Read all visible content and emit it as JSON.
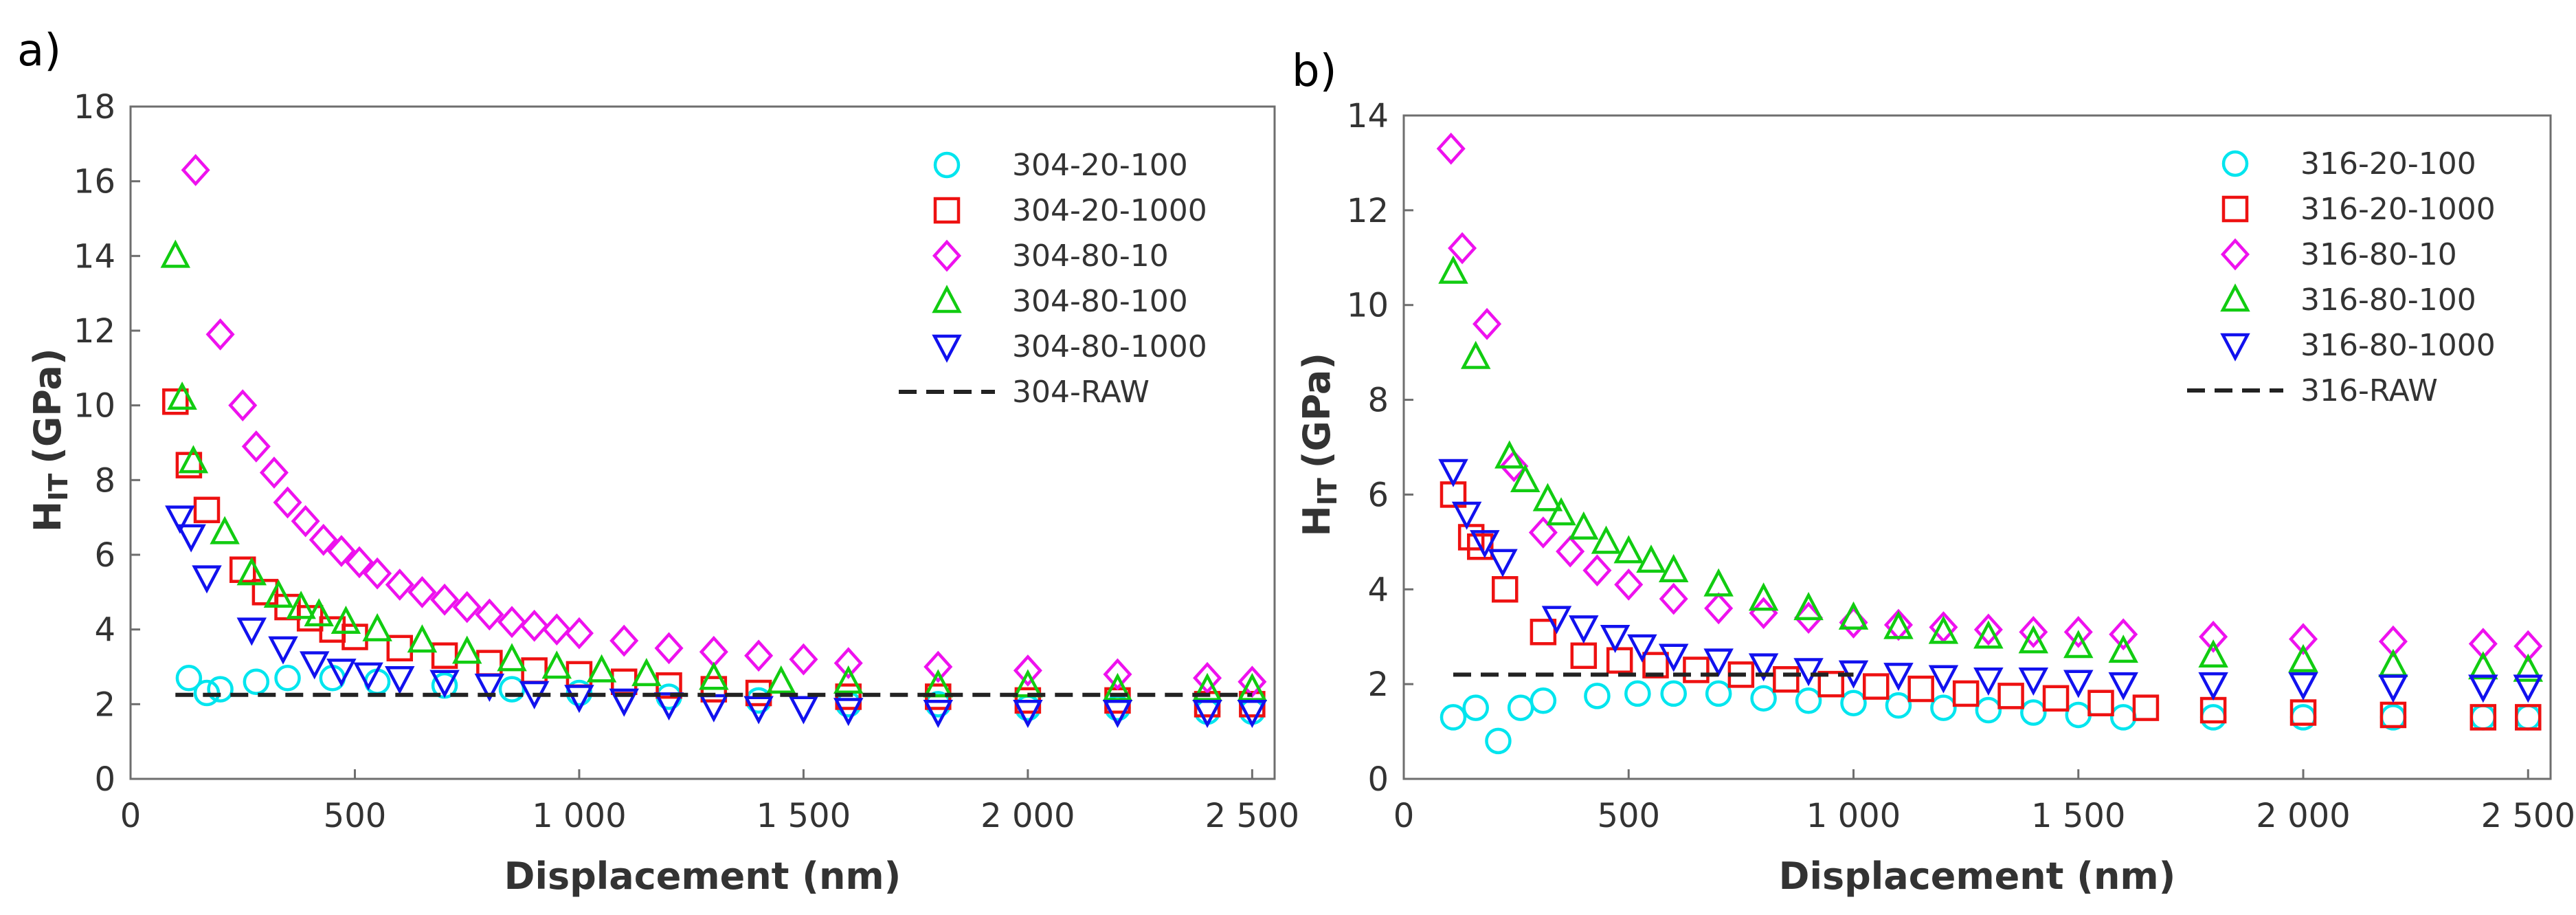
{
  "chart_data": [
    {
      "panel_label": "a)",
      "type": "scatter",
      "xlabel": "Displacement (nm)",
      "ylabel_main": "H",
      "ylabel_sub": "IT",
      "ylabel_unit": "(GPa)",
      "xlim": [
        0,
        2550
      ],
      "ylim": [
        0,
        18
      ],
      "xticks": [
        0,
        500,
        1000,
        1500,
        2000,
        2500
      ],
      "xtick_labels": [
        "0",
        "500",
        "1 000",
        "1 500",
        "2 000",
        "2 500"
      ],
      "yticks": [
        0,
        2,
        4,
        6,
        8,
        10,
        12,
        14,
        16,
        18
      ],
      "ytick_labels": [
        "0",
        "2",
        "4",
        "6",
        "8",
        "10",
        "12",
        "14",
        "16",
        "18"
      ],
      "legend_position": "top-right",
      "series": [
        {
          "name": "304-20-100",
          "marker": "circle",
          "color": "#00e5ee",
          "x": [
            130,
            170,
            200,
            280,
            350,
            450,
            550,
            700,
            850,
            1000,
            1200,
            1400,
            1600,
            1800,
            2000,
            2200,
            2400,
            2500
          ],
          "y": [
            2.7,
            2.3,
            2.4,
            2.6,
            2.7,
            2.7,
            2.6,
            2.5,
            2.4,
            2.3,
            2.2,
            2.1,
            2.0,
            2.0,
            1.9,
            1.9,
            1.8,
            1.8
          ]
        },
        {
          "name": "304-20-1000",
          "marker": "square",
          "color": "#ee1111",
          "x": [
            100,
            130,
            170,
            250,
            300,
            350,
            400,
            450,
            500,
            600,
            700,
            800,
            900,
            1000,
            1100,
            1200,
            1300,
            1400,
            1600,
            1800,
            2000,
            2200,
            2400,
            2500
          ],
          "y": [
            10.1,
            8.4,
            7.2,
            5.6,
            5.0,
            4.6,
            4.3,
            4.0,
            3.8,
            3.5,
            3.3,
            3.1,
            2.9,
            2.8,
            2.6,
            2.5,
            2.4,
            2.3,
            2.2,
            2.2,
            2.1,
            2.1,
            2.0,
            2.0
          ]
        },
        {
          "name": "304-80-10",
          "marker": "diamond",
          "color": "#ee11ee",
          "x": [
            145,
            200,
            250,
            280,
            320,
            350,
            390,
            430,
            470,
            510,
            550,
            600,
            650,
            700,
            750,
            800,
            850,
            900,
            950,
            1000,
            1100,
            1200,
            1300,
            1400,
            1500,
            1600,
            1800,
            2000,
            2200,
            2400,
            2500
          ],
          "y": [
            16.3,
            11.9,
            10.0,
            8.9,
            8.2,
            7.4,
            6.9,
            6.4,
            6.1,
            5.8,
            5.5,
            5.2,
            5.0,
            4.8,
            4.6,
            4.4,
            4.2,
            4.1,
            4.0,
            3.9,
            3.7,
            3.5,
            3.4,
            3.3,
            3.2,
            3.1,
            3.0,
            2.9,
            2.8,
            2.7,
            2.6
          ]
        },
        {
          "name": "304-80-100",
          "marker": "triangle-up",
          "color": "#11cc11",
          "x": [
            100,
            115,
            140,
            210,
            270,
            330,
            380,
            420,
            480,
            550,
            650,
            750,
            850,
            950,
            1050,
            1150,
            1300,
            1450,
            1600,
            1800,
            2000,
            2200,
            2400,
            2500
          ],
          "y": [
            14.0,
            10.2,
            8.5,
            6.6,
            5.5,
            4.9,
            4.6,
            4.4,
            4.2,
            4.0,
            3.7,
            3.4,
            3.2,
            3.0,
            2.9,
            2.8,
            2.7,
            2.6,
            2.6,
            2.5,
            2.5,
            2.4,
            2.4,
            2.4
          ]
        },
        {
          "name": "304-80-1000",
          "marker": "triangle-down",
          "color": "#1111ee",
          "x": [
            110,
            135,
            170,
            270,
            340,
            410,
            470,
            530,
            600,
            700,
            800,
            900,
            1000,
            1100,
            1200,
            1300,
            1400,
            1500,
            1600,
            1800,
            2000,
            2200,
            2400,
            2500
          ],
          "y": [
            7.0,
            6.5,
            5.4,
            4.0,
            3.5,
            3.1,
            2.9,
            2.8,
            2.7,
            2.6,
            2.5,
            2.3,
            2.2,
            2.1,
            2.0,
            1.95,
            1.9,
            1.9,
            1.85,
            1.8,
            1.8,
            1.8,
            1.8,
            1.8
          ]
        },
        {
          "name": "304-RAW",
          "marker": "dash",
          "color": "#222222",
          "x": [
            100,
            2500
          ],
          "y": [
            2.25,
            2.25
          ]
        }
      ]
    },
    {
      "panel_label": "b)",
      "type": "scatter",
      "xlabel": "Displacement (nm)",
      "ylabel_main": "H",
      "ylabel_sub": "IT",
      "ylabel_unit": "(GPa)",
      "xlim": [
        0,
        2550
      ],
      "ylim": [
        0,
        14
      ],
      "xticks": [
        0,
        500,
        1000,
        1500,
        2000,
        2500
      ],
      "xtick_labels": [
        "0",
        "500",
        "1 000",
        "1 500",
        "2 000",
        "2 500"
      ],
      "yticks": [
        0,
        2,
        4,
        6,
        8,
        10,
        12,
        14
      ],
      "ytick_labels": [
        "0",
        "2",
        "4",
        "6",
        "8",
        "10",
        "12",
        "14"
      ],
      "legend_position": "top-right",
      "series": [
        {
          "name": "316-20-100",
          "marker": "circle",
          "color": "#00e5ee",
          "x": [
            110,
            160,
            210,
            260,
            310,
            430,
            520,
            600,
            700,
            800,
            900,
            1000,
            1100,
            1200,
            1300,
            1400,
            1500,
            1600,
            1800,
            2000,
            2200,
            2400,
            2500
          ],
          "y": [
            1.3,
            1.5,
            0.8,
            1.5,
            1.65,
            1.75,
            1.8,
            1.8,
            1.8,
            1.7,
            1.65,
            1.6,
            1.55,
            1.5,
            1.45,
            1.4,
            1.35,
            1.3,
            1.3,
            1.3,
            1.3,
            1.3,
            1.3
          ]
        },
        {
          "name": "316-20-1000",
          "marker": "square",
          "color": "#ee1111",
          "x": [
            110,
            150,
            170,
            225,
            310,
            400,
            480,
            560,
            650,
            750,
            850,
            950,
            1050,
            1150,
            1250,
            1350,
            1450,
            1550,
            1650,
            1800,
            2000,
            2200,
            2400,
            2500
          ],
          "y": [
            6.0,
            5.1,
            4.9,
            4.0,
            3.1,
            2.6,
            2.5,
            2.4,
            2.3,
            2.2,
            2.1,
            2.0,
            1.95,
            1.9,
            1.8,
            1.75,
            1.7,
            1.6,
            1.5,
            1.45,
            1.4,
            1.35,
            1.3,
            1.3
          ]
        },
        {
          "name": "316-80-10",
          "marker": "diamond",
          "color": "#ee11ee",
          "x": [
            105,
            130,
            185,
            245,
            310,
            370,
            430,
            500,
            600,
            700,
            800,
            900,
            1000,
            1100,
            1200,
            1300,
            1400,
            1500,
            1600,
            1800,
            2000,
            2200,
            2400,
            2500
          ],
          "y": [
            13.3,
            11.2,
            9.6,
            6.6,
            5.2,
            4.8,
            4.4,
            4.1,
            3.8,
            3.6,
            3.5,
            3.4,
            3.3,
            3.25,
            3.2,
            3.15,
            3.1,
            3.1,
            3.05,
            3.0,
            2.95,
            2.9,
            2.85,
            2.8
          ]
        },
        {
          "name": "316-80-100",
          "marker": "triangle-up",
          "color": "#11cc11",
          "x": [
            110,
            160,
            235,
            270,
            320,
            350,
            400,
            450,
            500,
            550,
            600,
            700,
            800,
            900,
            1000,
            1100,
            1200,
            1300,
            1400,
            1500,
            1600,
            1800,
            2000,
            2200,
            2400,
            2500
          ],
          "y": [
            10.7,
            8.9,
            6.8,
            6.3,
            5.9,
            5.6,
            5.3,
            5.0,
            4.8,
            4.6,
            4.4,
            4.1,
            3.8,
            3.6,
            3.4,
            3.2,
            3.1,
            3.0,
            2.9,
            2.8,
            2.7,
            2.6,
            2.5,
            2.4,
            2.35,
            2.3
          ]
        },
        {
          "name": "316-80-1000",
          "marker": "triangle-down",
          "color": "#1111ee",
          "x": [
            110,
            140,
            180,
            220,
            340,
            400,
            470,
            530,
            600,
            700,
            800,
            900,
            1000,
            1100,
            1200,
            1300,
            1400,
            1500,
            1600,
            1800,
            2000,
            2200,
            2400,
            2500
          ],
          "y": [
            6.5,
            5.6,
            5.0,
            4.6,
            3.4,
            3.2,
            3.0,
            2.8,
            2.6,
            2.5,
            2.4,
            2.3,
            2.25,
            2.2,
            2.15,
            2.1,
            2.1,
            2.05,
            2.0,
            2.0,
            2.0,
            1.95,
            1.95,
            1.95
          ]
        },
        {
          "name": "316-RAW",
          "marker": "dash",
          "color": "#222222",
          "x": [
            110,
            1000
          ],
          "y": [
            2.2,
            2.2
          ]
        }
      ]
    }
  ]
}
